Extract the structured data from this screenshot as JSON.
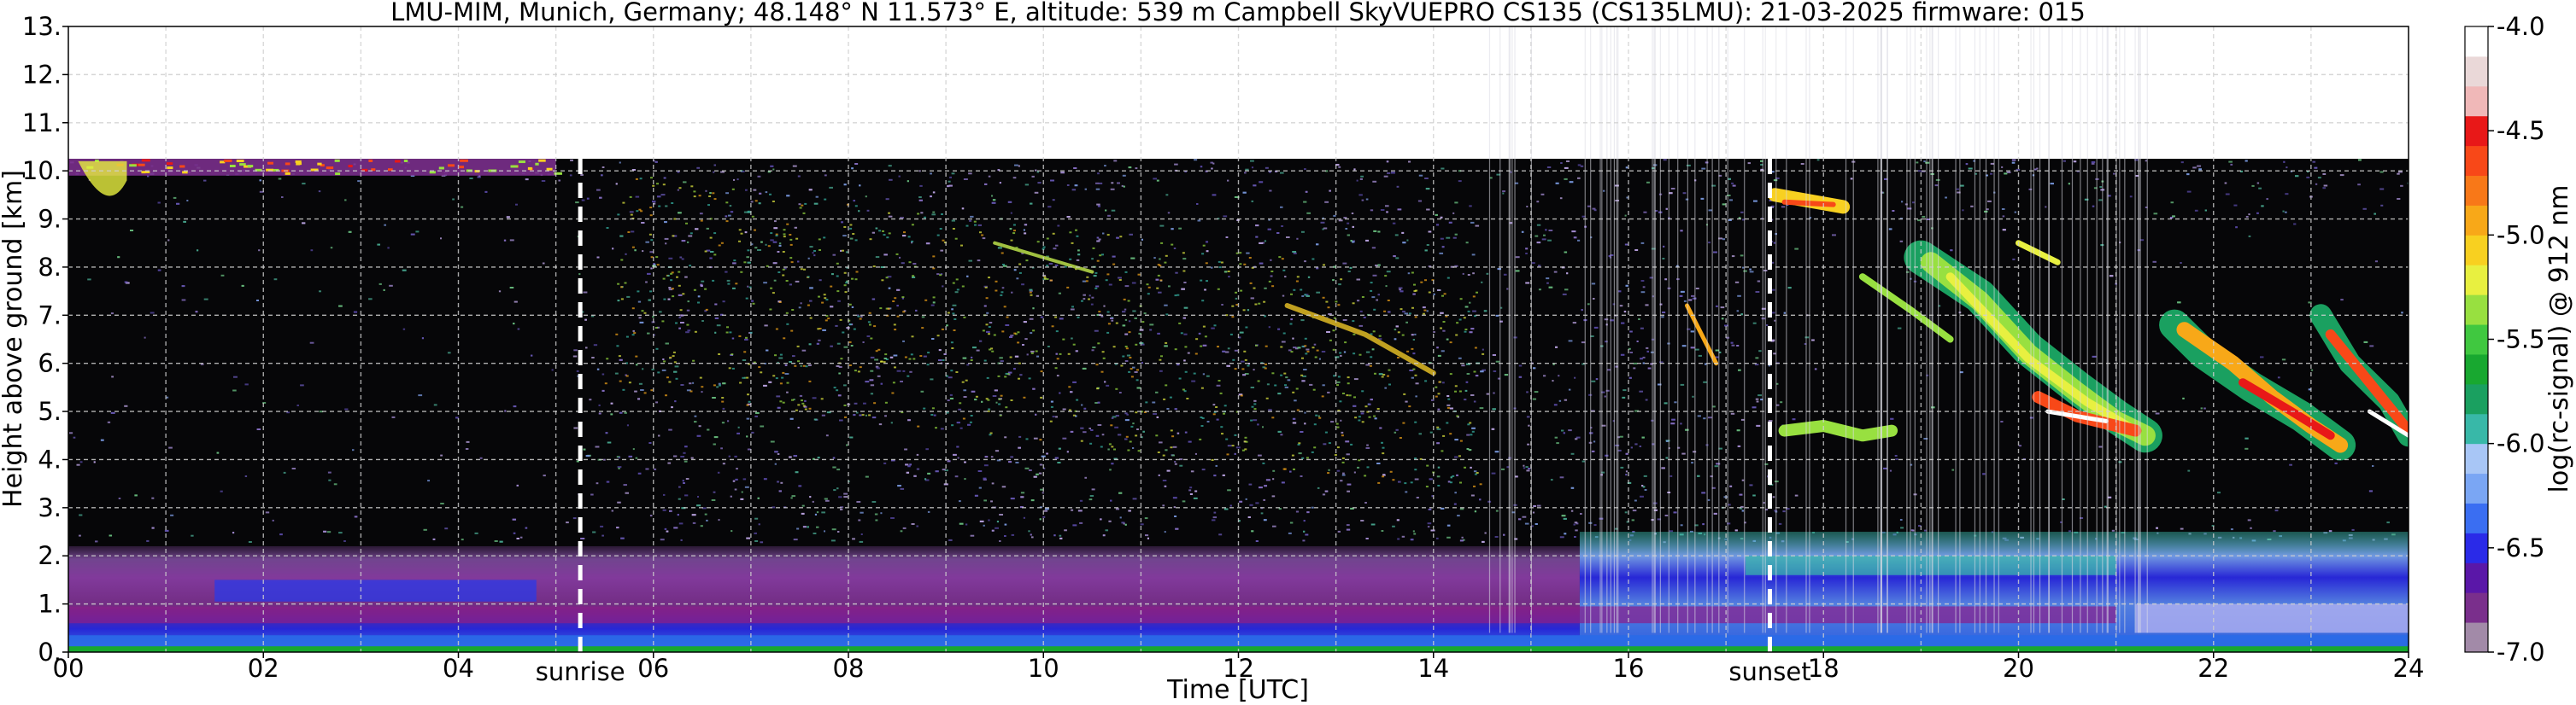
{
  "chart_data": {
    "type": "heatmap",
    "title": "LMU-MIM, Munich, Germany; 48.148° N 11.573° E, altitude: 539 m    Campbell SkyVUEPRO CS135 (CS135LMU): 21-03-2025    firmware: 015",
    "xlabel": "Time [UTC]",
    "ylabel": "Height above ground [km]",
    "xlim": [
      0,
      24
    ],
    "ylim": [
      0,
      13
    ],
    "x_ticks": [
      "00",
      "02",
      "04",
      "06",
      "08",
      "10",
      "12",
      "14",
      "16",
      "18",
      "20",
      "22",
      "24"
    ],
    "y_ticks": [
      "0.",
      "1.",
      "2.",
      "3.",
      "4.",
      "5.",
      "6.",
      "7.",
      "8.",
      "9.",
      "10.",
      "11.",
      "12.",
      "13."
    ],
    "grid": true,
    "max_range_km": 10.25,
    "annotations": [
      {
        "text": "sunrise",
        "x": 5.25
      },
      {
        "text": "sunset",
        "x": 17.45
      }
    ],
    "colorbar": {
      "label": "log(rc-signal) @ 912 nm",
      "range": [
        -7.0,
        -4.0
      ],
      "ticks": [
        "-4.0",
        "-4.5",
        "-5.0",
        "-5.5",
        "-6.0",
        "-6.5",
        "-7.0"
      ],
      "colors": [
        "#a28aa8",
        "#7a2f8c",
        "#5a17a8",
        "#2a2ae8",
        "#3a6ef2",
        "#7aa6f4",
        "#a8c6f6",
        "#38b8a8",
        "#1aa060",
        "#18a830",
        "#40c840",
        "#98e040",
        "#e8f040",
        "#f8d020",
        "#f8a818",
        "#f87818",
        "#f84818",
        "#e81818",
        "#f0b8b8",
        "#ead8d8",
        "#ffffff"
      ]
    },
    "features": [
      {
        "name": "boundary-layer",
        "t_start": 0,
        "t_end": 24,
        "height_km": [
          0.0,
          2.5
        ]
      },
      {
        "name": "surface-layer",
        "t_start": 0,
        "t_end": 24,
        "height_km": [
          0.0,
          0.35
        ]
      },
      {
        "name": "upper-cloud-morning",
        "t_start": 0,
        "t_end": 5.0,
        "height_km": [
          9.9,
          10.25
        ]
      },
      {
        "name": "cirrus-band-1",
        "t_start": 19.0,
        "t_end": 21.3,
        "height_km": [
          4.4,
          8.3
        ]
      },
      {
        "name": "cirrus-band-2",
        "t_start": 21.6,
        "t_end": 24.0,
        "height_km": [
          4.0,
          7.2
        ]
      },
      {
        "name": "cloud-streak-18h",
        "t_start": 17.5,
        "t_end": 18.2,
        "height_km": [
          9.1,
          9.5
        ]
      },
      {
        "name": "cloud-base-evening",
        "t_start": 17.6,
        "t_end": 18.7,
        "height_km": [
          4.3,
          4.8
        ]
      }
    ]
  }
}
